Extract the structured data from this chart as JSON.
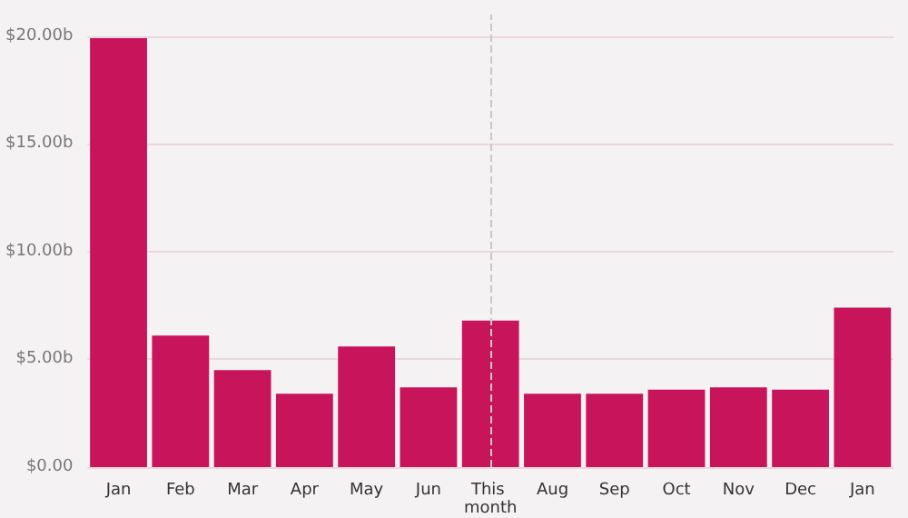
{
  "chart_data": {
    "type": "bar",
    "categories": [
      "Jan",
      "Feb",
      "Mar",
      "Apr",
      "May",
      "Jun",
      "This month",
      "Aug",
      "Sep",
      "Oct",
      "Nov",
      "Dec",
      "Jan"
    ],
    "values": [
      19.9,
      6.1,
      4.5,
      3.4,
      5.6,
      3.7,
      6.8,
      3.4,
      3.4,
      3.6,
      3.7,
      3.6,
      7.4
    ],
    "color": "#c8145a",
    "ylim": [
      0,
      21
    ],
    "yticks": [
      {
        "value": 0,
        "label": "$0.00"
      },
      {
        "value": 5,
        "label": "$5.00b"
      },
      {
        "value": 10,
        "label": "$10.00b"
      },
      {
        "value": 15,
        "label": "$15.00b"
      },
      {
        "value": 20,
        "label": "$20.00b"
      }
    ],
    "grid": "y",
    "ref_lines": [
      {
        "axis": "x",
        "value": "This month",
        "color": "#c8c8c8",
        "line_style": "dashed"
      }
    ]
  }
}
